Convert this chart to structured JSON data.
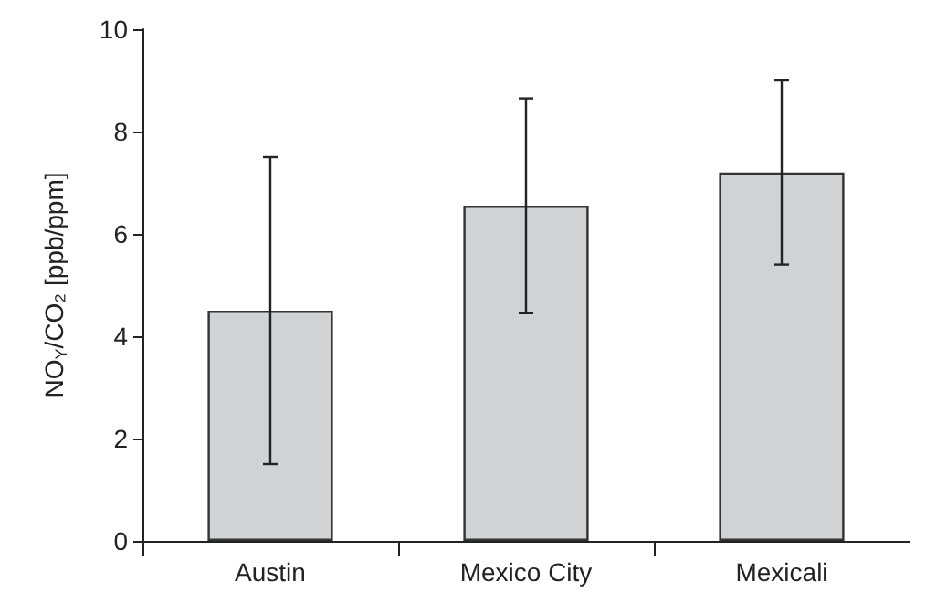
{
  "chart_data": {
    "type": "bar",
    "ylabel": "NO$_{Y}$/CO₂ [ppb/ppm]",
    "categories": [
      "Austin",
      "Mexico City",
      "Mexicali"
    ],
    "values": [
      4.5,
      6.55,
      7.2
    ],
    "errors": [
      3.0,
      2.1,
      1.8
    ],
    "color": "#d0d2d4",
    "ylim": [
      0,
      10
    ],
    "yticks": [
      0,
      2,
      4,
      6,
      8,
      10
    ],
    "grid": false
  }
}
